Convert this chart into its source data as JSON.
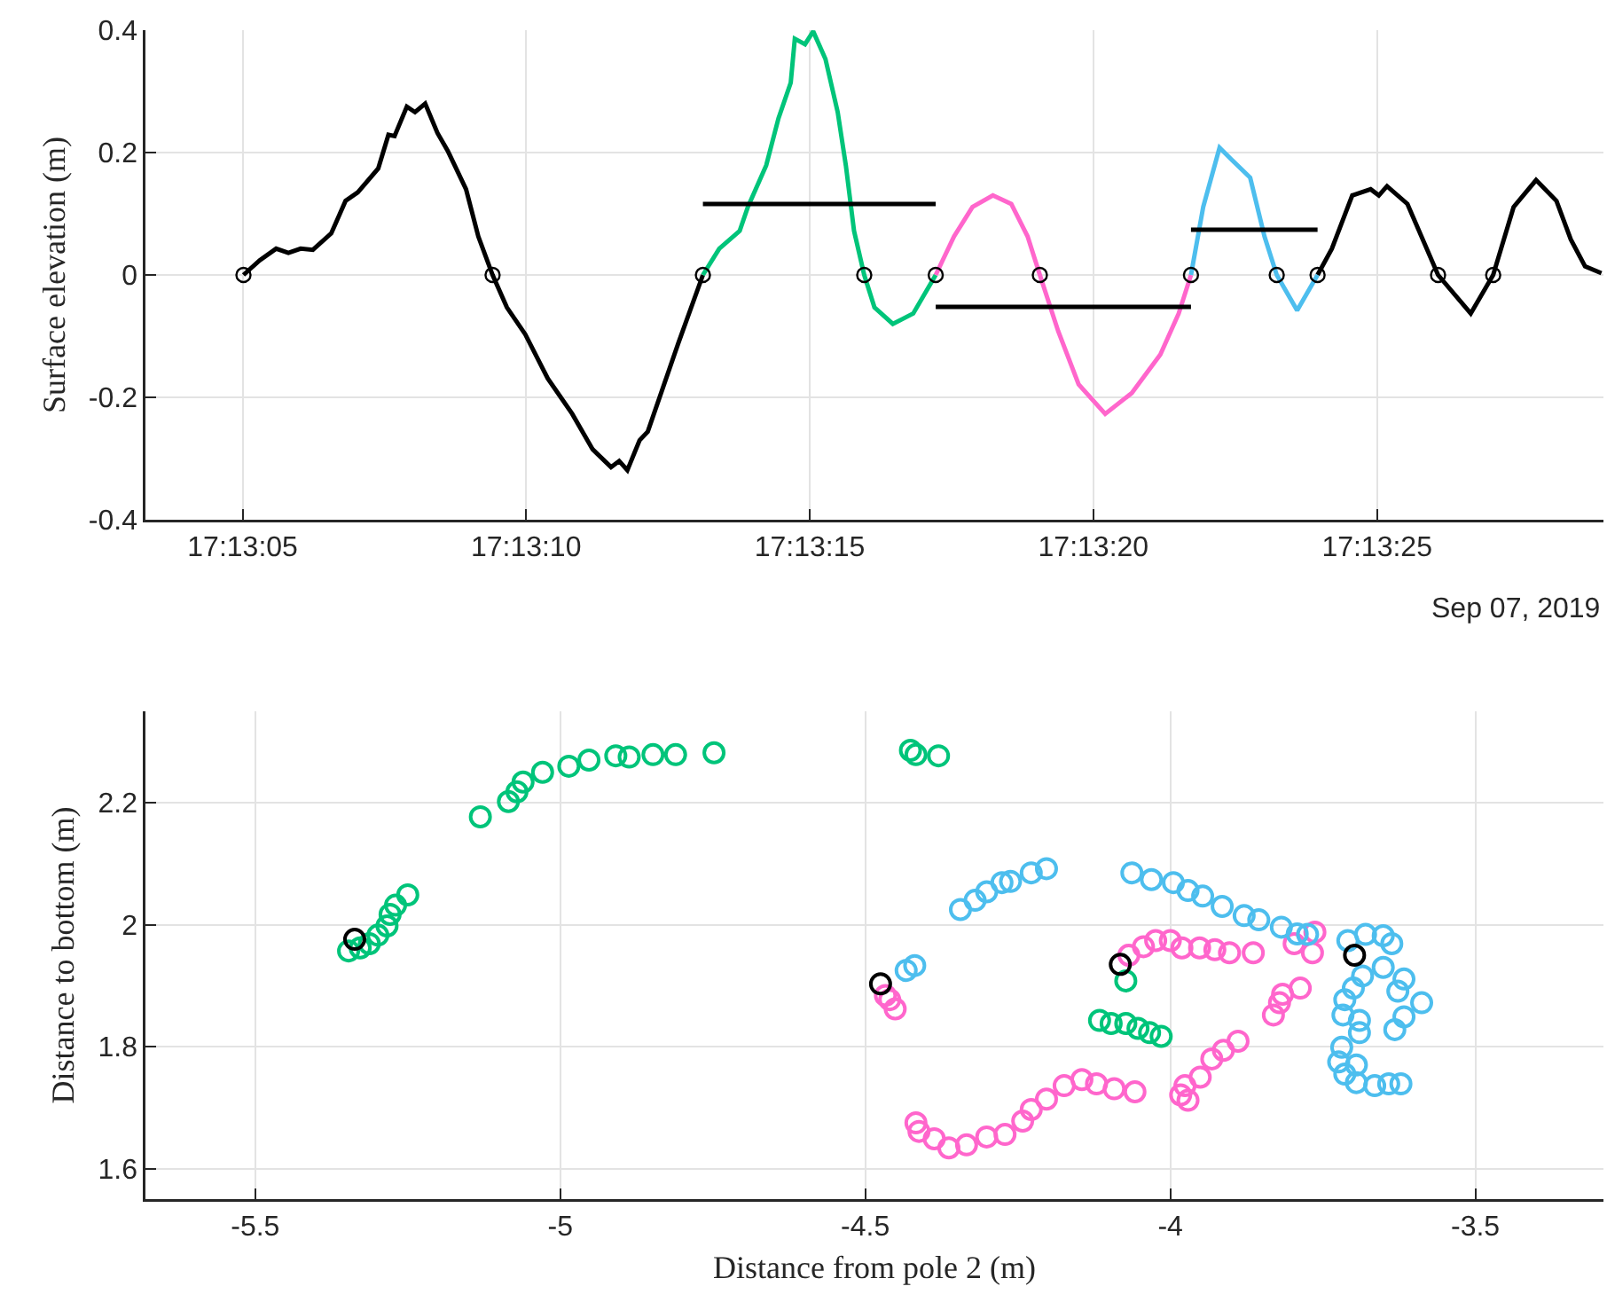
{
  "chart_data": [
    {
      "type": "line",
      "ylabel": "Surface elevation (m)",
      "xlim": [
        17.21758,
        17.22472
      ],
      "ylim": [
        -0.4,
        0.4
      ],
      "xticks": [
        {
          "value": 17.218056,
          "label": "17:13:05"
        },
        {
          "value": 17.219444,
          "label": "17:13:10"
        },
        {
          "value": 17.220833,
          "label": "17:13:15"
        },
        {
          "value": 17.222222,
          "label": "17:13:20"
        },
        {
          "value": 17.223611,
          "label": "17:13:25"
        }
      ],
      "yticks": [
        -0.4,
        -0.2,
        0,
        0.2,
        0.4
      ],
      "grid": true,
      "annotations": [
        "Sep 07, 2019"
      ],
      "series": [
        {
          "color": "#000000",
          "x": [
            17.21806,
            17.21814,
            17.21822,
            17.21828,
            17.21834,
            17.2184,
            17.21849,
            17.21856,
            17.21862,
            17.21872,
            17.21877,
            17.2188,
            17.21886,
            17.2189,
            17.21895,
            17.21901,
            17.21906,
            17.21915,
            17.21921,
            17.21928,
            17.21935,
            17.21944,
            17.21955,
            17.21967,
            17.21977,
            17.21986,
            17.2199,
            17.21994,
            17.22,
            17.22004,
            17.22019,
            17.22031
          ],
          "values": [
            0,
            0.024,
            0.043,
            0.036,
            0.043,
            0.041,
            0.068,
            0.121,
            0.135,
            0.174,
            0.229,
            0.227,
            0.275,
            0.266,
            0.28,
            0.232,
            0.203,
            0.14,
            0.063,
            0,
            -0.053,
            -0.097,
            -0.169,
            -0.227,
            -0.285,
            -0.314,
            -0.304,
            -0.319,
            -0.27,
            -0.256,
            -0.111,
            0
          ]
        },
        {
          "color": "#000000",
          "x": [
            17.22332,
            17.22339,
            17.22349,
            17.22358,
            17.22362,
            17.22366,
            17.22376,
            17.22391,
            17.22407,
            17.22418,
            17.22428,
            17.22439,
            17.22449,
            17.22456,
            17.22463,
            17.22471
          ],
          "values": [
            0,
            0.043,
            0.13,
            0.14,
            0.13,
            0.145,
            0.116,
            0,
            -0.063,
            0,
            0.111,
            0.155,
            0.121,
            0.058,
            0.014,
            0.003
          ]
        },
        {
          "color": "#00c47a",
          "x": [
            17.22031,
            17.22039,
            17.22049,
            17.22053,
            17.22062,
            17.22068,
            17.22074,
            17.22076,
            17.22081,
            17.22085,
            17.22091,
            17.22097,
            17.22101,
            17.22105,
            17.2211,
            17.22115,
            17.22124,
            17.22134,
            17.22145
          ],
          "values": [
            0,
            0.043,
            0.072,
            0.111,
            0.179,
            0.256,
            0.314,
            0.386,
            0.377,
            0.398,
            0.353,
            0.266,
            0.179,
            0.072,
            0,
            -0.053,
            -0.08,
            -0.063,
            0
          ]
        },
        {
          "color": "#ff66cc",
          "x": [
            17.22145,
            17.22154,
            17.22163,
            17.22173,
            17.22182,
            17.2219,
            17.22196,
            17.22205,
            17.22215,
            17.22228,
            17.22241,
            17.22255,
            17.22264,
            17.2227
          ],
          "values": [
            0,
            0.063,
            0.111,
            0.13,
            0.116,
            0.063,
            0,
            -0.092,
            -0.179,
            -0.227,
            -0.193,
            -0.13,
            -0.063,
            0
          ]
        },
        {
          "color": "#4dbeee",
          "x": [
            17.2227,
            17.22276,
            17.22284,
            17.2229,
            17.22299,
            17.22306,
            17.22312,
            17.22322,
            17.22332
          ],
          "values": [
            0,
            0.111,
            0.208,
            0.188,
            0.159,
            0.063,
            0,
            -0.058,
            0
          ]
        },
        {
          "color": "#000000",
          "x": [
            17.22031,
            17.22145
          ],
          "values": [
            0.116,
            0.116
          ]
        },
        {
          "color": "#000000",
          "x": [
            17.22145,
            17.2227
          ],
          "values": [
            -0.052,
            -0.052
          ]
        },
        {
          "color": "#000000",
          "x": [
            17.2227,
            17.22332
          ],
          "values": [
            0.074,
            0.074
          ]
        },
        {
          "type": "scatter",
          "color": "#000000",
          "x": [
            17.21806,
            17.21928,
            17.22031,
            17.2211,
            17.22145,
            17.22196,
            17.2227,
            17.22312,
            17.22332,
            17.22391,
            17.22418
          ],
          "values": [
            0,
            0,
            0,
            0,
            0,
            0,
            0,
            0,
            0,
            0,
            0
          ]
        }
      ]
    },
    {
      "type": "scatter",
      "xlabel": "Distance from pole 2 (m)",
      "ylabel": "Distance to bottom (m)",
      "xlim": [
        -5.68,
        -3.29
      ],
      "ylim": [
        1.55,
        2.35
      ],
      "xticks": [
        -5.5,
        -5,
        -4.5,
        -4,
        -3.5
      ],
      "yticks": [
        1.6,
        1.8,
        2,
        2.2
      ],
      "grid": true,
      "marker": "circle",
      "series": [
        {
          "color": "#00c47a",
          "x": [
            -5.347,
            -5.328,
            -5.313,
            -5.299,
            -5.284,
            -5.279,
            -5.27,
            -5.25,
            -5.131,
            -5.085,
            -5.071,
            -5.061,
            -5.029,
            -4.986,
            -4.953,
            -4.909,
            -4.887,
            -4.848,
            -4.811,
            -4.748,
            -4.426,
            -4.417,
            -4.38,
            -4.116,
            -4.097,
            -4.073,
            -4.053,
            -4.034,
            -4.015,
            -4.073
          ],
          "values": [
            1.957,
            1.962,
            1.969,
            1.983,
            1.998,
            2.017,
            2.032,
            2.049,
            2.177,
            2.202,
            2.218,
            2.234,
            2.25,
            2.26,
            2.27,
            2.277,
            2.275,
            2.279,
            2.279,
            2.282,
            2.286,
            2.279,
            2.277,
            1.843,
            1.838,
            1.838,
            1.83,
            1.823,
            1.817,
            1.908
          ]
        },
        {
          "color": "#ff66cc",
          "x": [
            -4.467,
            -4.46,
            -4.451,
            -4.068,
            -4.044,
            -4.024,
            -4,
            -3.981,
            -3.952,
            -3.927,
            -3.903,
            -3.864,
            -3.763,
            -3.797,
            -3.767,
            -3.787,
            -3.816,
            -3.831,
            -3.821,
            -3.889,
            -3.913,
            -3.932,
            -3.951,
            -3.976,
            -3.983,
            -3.971,
            -4.058,
            -4.092,
            -4.121,
            -4.145,
            -4.174,
            -4.203,
            -4.228,
            -4.242,
            -4.271,
            -4.301,
            -4.334,
            -4.363,
            -4.387,
            -4.412,
            -4.417
          ],
          "values": [
            1.884,
            1.877,
            1.862,
            1.95,
            1.964,
            1.974,
            1.974,
            1.962,
            1.962,
            1.959,
            1.954,
            1.954,
            1.988,
            1.969,
            1.954,
            1.896,
            1.886,
            1.852,
            1.872,
            1.809,
            1.794,
            1.78,
            1.75,
            1.736,
            1.721,
            1.712,
            1.726,
            1.731,
            1.739,
            1.746,
            1.736,
            1.714,
            1.697,
            1.678,
            1.656,
            1.652,
            1.639,
            1.634,
            1.649,
            1.661,
            1.675
          ]
        },
        {
          "color": "#4dbeee",
          "x": [
            -4.433,
            -4.419,
            -4.344,
            -4.32,
            -4.301,
            -4.276,
            -4.262,
            -4.228,
            -4.203,
            -4.063,
            -4.031,
            -3.995,
            -3.971,
            -3.947,
            -3.915,
            -3.879,
            -3.855,
            -3.818,
            -3.792,
            -3.775,
            -3.709,
            -3.68,
            -3.651,
            -3.637,
            -3.651,
            -3.617,
            -3.627,
            -3.588,
            -3.617,
            -3.632,
            -3.685,
            -3.7,
            -3.714,
            -3.717,
            -3.69,
            -3.69,
            -3.719,
            -3.724,
            -3.714,
            -3.695,
            -3.665,
            -3.642,
            -3.622,
            -3.695
          ],
          "values": [
            1.925,
            1.933,
            2.025,
            2.04,
            2.054,
            2.069,
            2.071,
            2.085,
            2.092,
            2.085,
            2.074,
            2.069,
            2.056,
            2.047,
            2.03,
            2.015,
            2.008,
            1.996,
            1.985,
            1.984,
            1.974,
            1.984,
            1.982,
            1.969,
            1.93,
            1.911,
            1.891,
            1.872,
            1.849,
            1.828,
            1.916,
            1.896,
            1.877,
            1.852,
            1.843,
            1.823,
            1.799,
            1.775,
            1.755,
            1.741,
            1.736,
            1.739,
            1.739,
            1.77
          ]
        },
        {
          "color": "#000000",
          "x": [
            -5.337,
            -4.475,
            -4.082,
            -3.698
          ],
          "values": [
            1.976,
            1.903,
            1.935,
            1.95
          ]
        }
      ]
    }
  ]
}
